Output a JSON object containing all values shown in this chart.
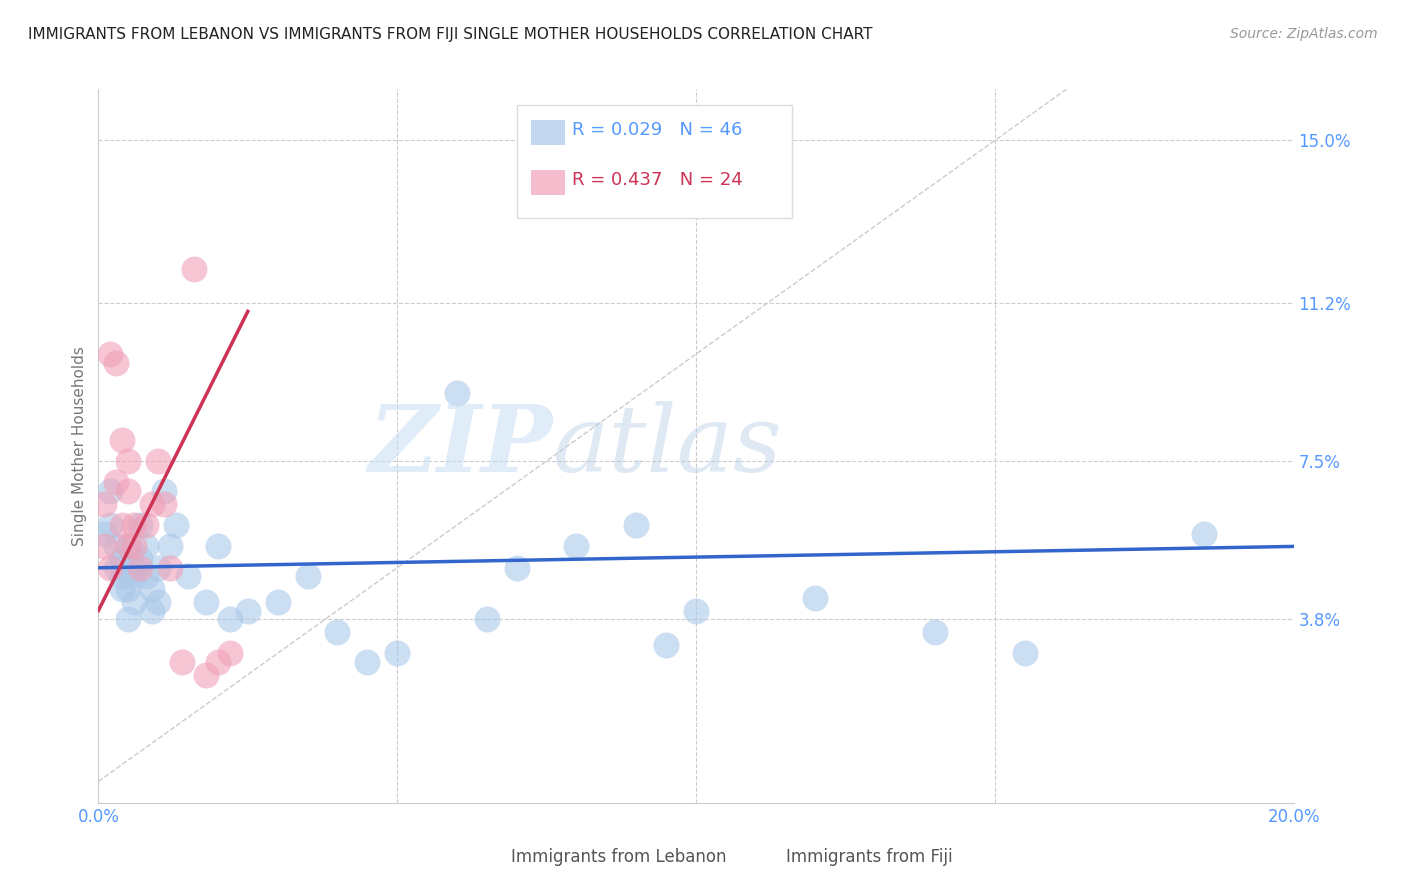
{
  "title": "IMMIGRANTS FROM LEBANON VS IMMIGRANTS FROM FIJI SINGLE MOTHER HOUSEHOLDS CORRELATION CHART",
  "source": "Source: ZipAtlas.com",
  "ylabel": "Single Mother Households",
  "legend_blue": "Immigrants from Lebanon",
  "legend_pink": "Immigrants from Fiji",
  "r_blue": "0.029",
  "n_blue": "46",
  "r_pink": "0.437",
  "n_pink": "24",
  "xlim": [
    0.0,
    0.2
  ],
  "ylim": [
    -0.005,
    0.162
  ],
  "yticks": [
    0.038,
    0.075,
    0.112,
    0.15
  ],
  "ytick_labels": [
    "3.8%",
    "7.5%",
    "11.2%",
    "15.0%"
  ],
  "xticks": [
    0.0,
    0.05,
    0.1,
    0.15,
    0.2
  ],
  "xtick_labels": [
    "0.0%",
    "",
    "",
    "",
    "20.0%"
  ],
  "watermark_zip": "ZIP",
  "watermark_atlas": "atlas",
  "blue_scatter_color": "#aac8e8",
  "pink_scatter_color": "#f0a0b8",
  "blue_line_color": "#3366cc",
  "pink_line_color": "#cc3355",
  "diag_color": "#cccccc",
  "grid_color": "#cccccc",
  "axis_color": "#cccccc",
  "tick_color": "#5599ff",
  "ylabel_color": "#777777",
  "title_color": "#222222",
  "source_color": "#999999",
  "legend_box_color": "#dddddd",
  "lebanon_x": [
    0.001,
    0.002,
    0.002,
    0.003,
    0.003,
    0.004,
    0.004,
    0.004,
    0.005,
    0.005,
    0.005,
    0.006,
    0.006,
    0.006,
    0.007,
    0.007,
    0.008,
    0.008,
    0.009,
    0.009,
    0.01,
    0.01,
    0.011,
    0.012,
    0.013,
    0.015,
    0.018,
    0.02,
    0.022,
    0.025,
    0.03,
    0.035,
    0.04,
    0.045,
    0.05,
    0.06,
    0.065,
    0.07,
    0.08,
    0.09,
    0.095,
    0.1,
    0.12,
    0.14,
    0.155,
    0.185
  ],
  "lebanon_y": [
    0.058,
    0.06,
    0.068,
    0.055,
    0.05,
    0.045,
    0.048,
    0.052,
    0.055,
    0.045,
    0.038,
    0.05,
    0.042,
    0.048,
    0.06,
    0.052,
    0.055,
    0.048,
    0.045,
    0.04,
    0.042,
    0.05,
    0.068,
    0.055,
    0.06,
    0.048,
    0.042,
    0.055,
    0.038,
    0.04,
    0.042,
    0.048,
    0.035,
    0.028,
    0.03,
    0.091,
    0.038,
    0.05,
    0.055,
    0.06,
    0.032,
    0.04,
    0.043,
    0.035,
    0.03,
    0.058
  ],
  "fiji_x": [
    0.001,
    0.001,
    0.002,
    0.002,
    0.003,
    0.003,
    0.004,
    0.004,
    0.005,
    0.005,
    0.005,
    0.006,
    0.006,
    0.007,
    0.008,
    0.009,
    0.01,
    0.011,
    0.012,
    0.014,
    0.016,
    0.018,
    0.02,
    0.022
  ],
  "fiji_y": [
    0.055,
    0.065,
    0.05,
    0.1,
    0.098,
    0.07,
    0.06,
    0.08,
    0.055,
    0.068,
    0.075,
    0.055,
    0.06,
    0.05,
    0.06,
    0.065,
    0.075,
    0.065,
    0.05,
    0.028,
    0.12,
    0.025,
    0.028,
    0.03
  ]
}
